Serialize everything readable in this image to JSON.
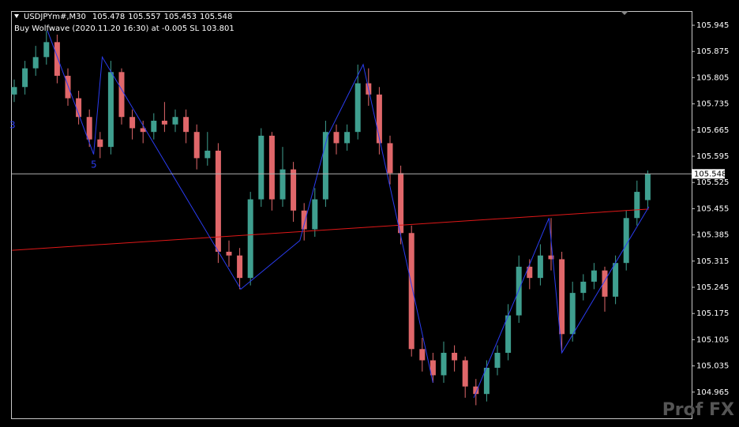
{
  "chart_data": {
    "type": "candlestick",
    "title": "USDJPYm#,M30",
    "subtitle": "Buy Wolfwave (2020.11.20 16:30) at -0.005 SL 103.801",
    "up_color": "#3f9f8f",
    "down_color": "#e0676a",
    "open": [
      105.76,
      105.78,
      105.83,
      105.86,
      105.9,
      105.81,
      105.75,
      105.7,
      105.64,
      105.62,
      105.82,
      105.7,
      105.67,
      105.66,
      105.69,
      105.68,
      105.7,
      105.66,
      105.59,
      105.61,
      105.34,
      105.33,
      105.27,
      105.48,
      105.65,
      105.48,
      105.56,
      105.45,
      105.4,
      105.48,
      105.66,
      105.63,
      105.66,
      105.79,
      105.76,
      105.63,
      105.55,
      105.39,
      105.08,
      105.05,
      105.01,
      105.07,
      105.05,
      104.98,
      104.96,
      105.03,
      105.07,
      105.17,
      105.3,
      105.27,
      105.33,
      105.32,
      105.12,
      105.23,
      105.26,
      105.29,
      105.22,
      105.31,
      105.43,
      105.478
    ],
    "high": [
      105.8,
      105.85,
      105.89,
      105.93,
      105.92,
      105.83,
      105.77,
      105.72,
      105.66,
      105.85,
      105.83,
      105.72,
      105.69,
      105.71,
      105.74,
      105.72,
      105.72,
      105.68,
      105.66,
      105.63,
      105.37,
      105.35,
      105.5,
      105.67,
      105.66,
      105.62,
      105.58,
      105.47,
      105.51,
      105.69,
      105.68,
      105.68,
      105.84,
      105.83,
      105.78,
      105.65,
      105.57,
      105.41,
      105.11,
      105.07,
      105.1,
      105.09,
      105.06,
      105.0,
      105.05,
      105.09,
      105.2,
      105.33,
      105.32,
      105.36,
      105.43,
      105.34,
      105.26,
      105.28,
      105.31,
      105.3,
      105.33,
      105.45,
      105.53,
      105.557
    ],
    "low": [
      105.74,
      105.76,
      105.81,
      105.84,
      105.79,
      105.73,
      105.68,
      105.62,
      105.59,
      105.6,
      105.68,
      105.64,
      105.63,
      105.64,
      105.66,
      105.66,
      105.63,
      105.56,
      105.57,
      105.31,
      105.3,
      105.24,
      105.25,
      105.46,
      105.45,
      105.46,
      105.42,
      105.37,
      105.38,
      105.46,
      105.6,
      105.61,
      105.64,
      105.73,
      105.6,
      105.52,
      105.36,
      105.06,
      105.02,
      104.99,
      104.99,
      105.02,
      104.95,
      104.93,
      104.94,
      105.01,
      105.05,
      105.15,
      105.24,
      105.25,
      105.29,
      105.07,
      105.1,
      105.21,
      105.24,
      105.18,
      105.2,
      105.29,
      105.41,
      105.453
    ],
    "close": [
      105.78,
      105.83,
      105.86,
      105.9,
      105.81,
      105.75,
      105.7,
      105.64,
      105.62,
      105.82,
      105.7,
      105.67,
      105.66,
      105.69,
      105.68,
      105.7,
      105.66,
      105.59,
      105.61,
      105.34,
      105.33,
      105.27,
      105.48,
      105.65,
      105.48,
      105.56,
      105.45,
      105.4,
      105.48,
      105.66,
      105.63,
      105.66,
      105.79,
      105.76,
      105.63,
      105.55,
      105.39,
      105.08,
      105.05,
      105.01,
      105.07,
      105.05,
      104.98,
      104.96,
      105.03,
      105.07,
      105.17,
      105.3,
      105.27,
      105.33,
      105.32,
      105.12,
      105.23,
      105.26,
      105.29,
      105.22,
      105.31,
      105.43,
      105.5,
      105.548
    ],
    "ylim": [
      104.895,
      105.983
    ],
    "yticks": [
      105.945,
      105.875,
      105.805,
      105.735,
      105.665,
      105.595,
      105.525,
      105.455,
      105.385,
      105.315,
      105.245,
      105.175,
      105.105,
      105.035,
      104.965
    ],
    "last_price": 105.548,
    "wolfwave": {
      "color": "#2a3cf0",
      "x": [
        3.1,
        7.4,
        8.2,
        21.1,
        26.6,
        29.2,
        32.5,
        39.0,
        null,
        42.8,
        49.8,
        51.0,
        59.1
      ],
      "y": [
        105.93,
        105.6,
        105.86,
        105.24,
        105.37,
        105.65,
        105.84,
        104.99,
        null,
        104.95,
        105.43,
        105.07,
        105.46
      ]
    },
    "wave_labels": [
      "3",
      "5"
    ],
    "trendline": {
      "color": "#e01818",
      "x": [
        -0.2,
        59.1
      ],
      "y": [
        105.344,
        105.454
      ]
    },
    "watermark": "Prof FX"
  }
}
